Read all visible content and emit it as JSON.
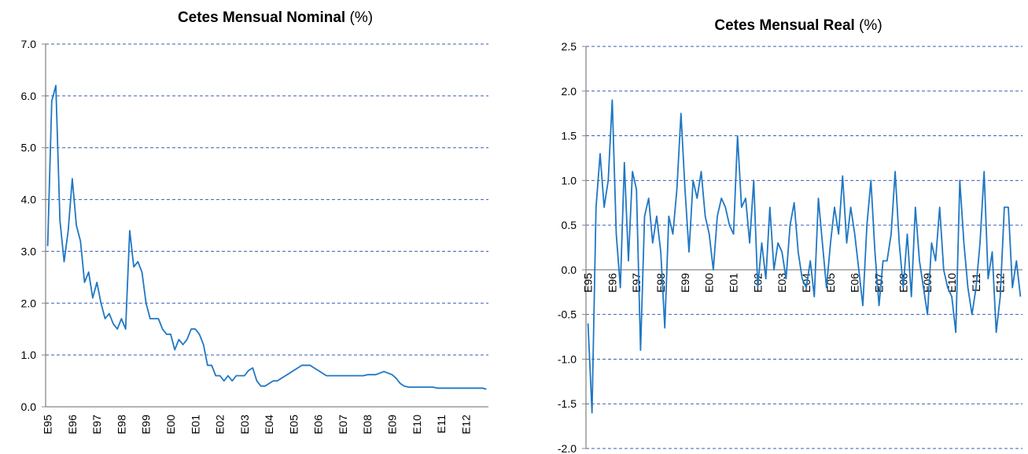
{
  "chart_data": [
    {
      "type": "line",
      "title": "Cetes Mensual Nominal",
      "unit": "(%)",
      "categories": [
        "E95",
        null,
        null,
        null,
        null,
        null,
        "E96",
        null,
        null,
        null,
        null,
        null,
        "E97",
        null,
        null,
        null,
        null,
        null,
        "E98",
        null,
        null,
        null,
        null,
        null,
        "E99",
        null,
        null,
        null,
        null,
        null,
        "E00",
        null,
        null,
        null,
        null,
        null,
        "E01",
        null,
        null,
        null,
        null,
        null,
        "E02",
        null,
        null,
        null,
        null,
        null,
        "E03",
        null,
        null,
        null,
        null,
        null,
        "E04",
        null,
        null,
        null,
        null,
        null,
        "E05",
        null,
        null,
        null,
        null,
        null,
        "E06",
        null,
        null,
        null,
        null,
        null,
        "E07",
        null,
        null,
        null,
        null,
        null,
        "E08",
        null,
        null,
        null,
        null,
        null,
        "E09",
        null,
        null,
        null,
        null,
        null,
        "E10",
        null,
        null,
        null,
        null,
        null,
        "E11",
        null,
        null,
        null,
        null,
        null,
        "E12",
        null,
        null,
        null,
        null,
        null
      ],
      "series": [
        {
          "color": "#1f77c4",
          "values": [
            3.1,
            5.9,
            6.2,
            3.6,
            2.8,
            3.4,
            4.4,
            3.5,
            3.2,
            2.4,
            2.6,
            2.1,
            2.4,
            2.0,
            1.7,
            1.8,
            1.6,
            1.5,
            1.7,
            1.5,
            3.4,
            2.7,
            2.8,
            2.6,
            2.0,
            1.7,
            1.7,
            1.7,
            1.5,
            1.4,
            1.4,
            1.1,
            1.3,
            1.2,
            1.3,
            1.5,
            1.5,
            1.4,
            1.2,
            0.8,
            0.8,
            0.6,
            0.6,
            0.5,
            0.6,
            0.5,
            0.6,
            0.6,
            0.6,
            0.7,
            0.75,
            0.5,
            0.4,
            0.4,
            0.45,
            0.5,
            0.5,
            0.55,
            0.6,
            0.65,
            0.7,
            0.75,
            0.8,
            0.8,
            0.8,
            0.75,
            0.7,
            0.65,
            0.6,
            0.6,
            0.6,
            0.6,
            0.6,
            0.6,
            0.6,
            0.6,
            0.6,
            0.6,
            0.62,
            0.62,
            0.62,
            0.65,
            0.68,
            0.65,
            0.62,
            0.55,
            0.45,
            0.4,
            0.38,
            0.38,
            0.38,
            0.38,
            0.38,
            0.38,
            0.38,
            0.36,
            0.36,
            0.36,
            0.36,
            0.36,
            0.36,
            0.36,
            0.36,
            0.36,
            0.36,
            0.36,
            0.36,
            0.34
          ]
        }
      ],
      "ylim": [
        0,
        7
      ],
      "yticks": [
        {
          "value": 0,
          "label": "0.0"
        },
        {
          "value": 1,
          "label": "1.0"
        },
        {
          "value": 2,
          "label": "2.0"
        },
        {
          "value": 3,
          "label": "3.0"
        },
        {
          "value": 4,
          "label": "4.0"
        },
        {
          "value": 5,
          "label": "5.0"
        },
        {
          "value": 6,
          "label": "6.0"
        },
        {
          "value": 7,
          "label": "7.0"
        }
      ],
      "grid": true
    },
    {
      "type": "line",
      "title": "Cetes Mensual Real",
      "unit": "(%)",
      "categories": [
        "E95",
        null,
        null,
        null,
        null,
        null,
        "E96",
        null,
        null,
        null,
        null,
        null,
        "E97",
        null,
        null,
        null,
        null,
        null,
        "E98",
        null,
        null,
        null,
        null,
        null,
        "E99",
        null,
        null,
        null,
        null,
        null,
        "E00",
        null,
        null,
        null,
        null,
        null,
        "E01",
        null,
        null,
        null,
        null,
        null,
        "E02",
        null,
        null,
        null,
        null,
        null,
        "E03",
        null,
        null,
        null,
        null,
        null,
        "E04",
        null,
        null,
        null,
        null,
        null,
        "E05",
        null,
        null,
        null,
        null,
        null,
        "E06",
        null,
        null,
        null,
        null,
        null,
        "E07",
        null,
        null,
        null,
        null,
        null,
        "E08",
        null,
        null,
        null,
        null,
        null,
        "E09",
        null,
        null,
        null,
        null,
        null,
        "E10",
        null,
        null,
        null,
        null,
        null,
        "E11",
        null,
        null,
        null,
        null,
        null,
        "E12",
        null,
        null,
        null,
        null,
        null
      ],
      "series": [
        {
          "color": "#1f77c4",
          "values": [
            -0.6,
            -1.6,
            0.7,
            1.3,
            0.7,
            1.0,
            1.9,
            0.4,
            -0.2,
            1.2,
            0.1,
            1.1,
            0.9,
            -0.9,
            0.6,
            0.8,
            0.3,
            0.6,
            0.2,
            -0.65,
            0.6,
            0.4,
            0.9,
            1.75,
            0.9,
            0.2,
            1.0,
            0.8,
            1.1,
            0.6,
            0.4,
            0.0,
            0.6,
            0.8,
            0.7,
            0.5,
            0.4,
            1.5,
            0.7,
            0.8,
            0.3,
            1.0,
            -0.2,
            0.3,
            -0.1,
            0.7,
            0.0,
            0.3,
            0.2,
            -0.1,
            0.5,
            0.75,
            0.2,
            -0.1,
            -0.2,
            0.1,
            -0.3,
            0.8,
            0.3,
            -0.2,
            0.3,
            0.7,
            0.4,
            1.05,
            0.3,
            0.7,
            0.4,
            0.0,
            -0.4,
            0.5,
            1.0,
            0.2,
            -0.4,
            0.1,
            0.1,
            0.4,
            1.1,
            0.3,
            -0.2,
            0.4,
            -0.3,
            0.7,
            0.1,
            -0.2,
            -0.5,
            0.3,
            0.1,
            0.7,
            0.0,
            -0.2,
            -0.3,
            -0.7,
            1.0,
            0.3,
            -0.2,
            -0.5,
            -0.2,
            0.3,
            1.1,
            -0.1,
            0.2,
            -0.7,
            -0.3,
            0.7,
            0.7,
            -0.2,
            0.1,
            -0.3
          ]
        }
      ],
      "ylim": [
        -2,
        2.5
      ],
      "yticks": [
        {
          "value": -2,
          "label": "-2.0"
        },
        {
          "value": -1.5,
          "label": "-1.5"
        },
        {
          "value": -1,
          "label": "-1.0"
        },
        {
          "value": -0.5,
          "label": "-0.5"
        },
        {
          "value": 0,
          "label": "0.0"
        },
        {
          "value": 0.5,
          "label": "0.5"
        },
        {
          "value": 1,
          "label": "1.0"
        },
        {
          "value": 1.5,
          "label": "1.5"
        },
        {
          "value": 2,
          "label": "2.0"
        },
        {
          "value": 2.5,
          "label": "2.5"
        }
      ],
      "grid": true
    }
  ]
}
